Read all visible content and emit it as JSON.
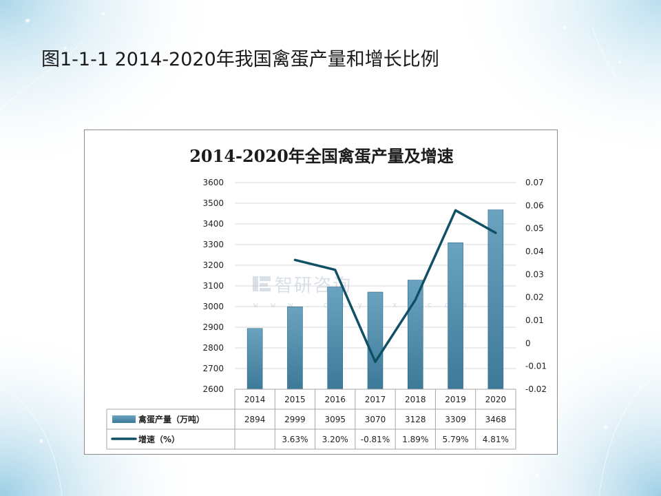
{
  "slide": {
    "title": "图1-1-1  2014-2020年我国禽蛋产量和增长比例"
  },
  "watermark": {
    "text": "智研咨询",
    "url": "w w w . c h y x x . c o m",
    "icon": "chyxx-logo-icon"
  },
  "colors": {
    "bar_fill_top": "#6aa3c0",
    "bar_fill_bottom": "#3d7a98",
    "line": "#0f5065",
    "grid": "#d9d9d9",
    "table_border": "#a6a6a6"
  },
  "chart_data": {
    "type": "bar",
    "title": "2014-2020年全国禽蛋产量及增速",
    "categories": [
      "2014",
      "2015",
      "2016",
      "2017",
      "2018",
      "2019",
      "2020"
    ],
    "series": [
      {
        "name": "禽蛋产量（万吨）",
        "type": "bar",
        "axis": "left",
        "values": [
          2894,
          2999,
          3095,
          3070,
          3128,
          3309,
          3468
        ],
        "labels": [
          "2894",
          "2999",
          "3095",
          "3070",
          "3128",
          "3309",
          "3468"
        ]
      },
      {
        "name": "增速（%）",
        "type": "line",
        "axis": "right",
        "values": [
          null,
          0.0363,
          0.032,
          -0.0081,
          0.0189,
          0.0579,
          0.0481
        ],
        "labels": [
          "",
          "3.63%",
          "3.20%",
          "-0.81%",
          "1.89%",
          "5.79%",
          "4.81%"
        ]
      }
    ],
    "y_left": {
      "min": 2600,
      "max": 3600,
      "ticks": [
        "2600",
        "2700",
        "2800",
        "2900",
        "3000",
        "3100",
        "3200",
        "3300",
        "3400",
        "3500",
        "3600"
      ]
    },
    "y_right": {
      "min": -0.02,
      "max": 0.07,
      "ticks": [
        "-0.02",
        "-0.01",
        "0",
        "0.01",
        "0.02",
        "0.03",
        "0.04",
        "0.05",
        "0.06",
        "0.07"
      ]
    },
    "grid": true,
    "legend": "data-table"
  }
}
